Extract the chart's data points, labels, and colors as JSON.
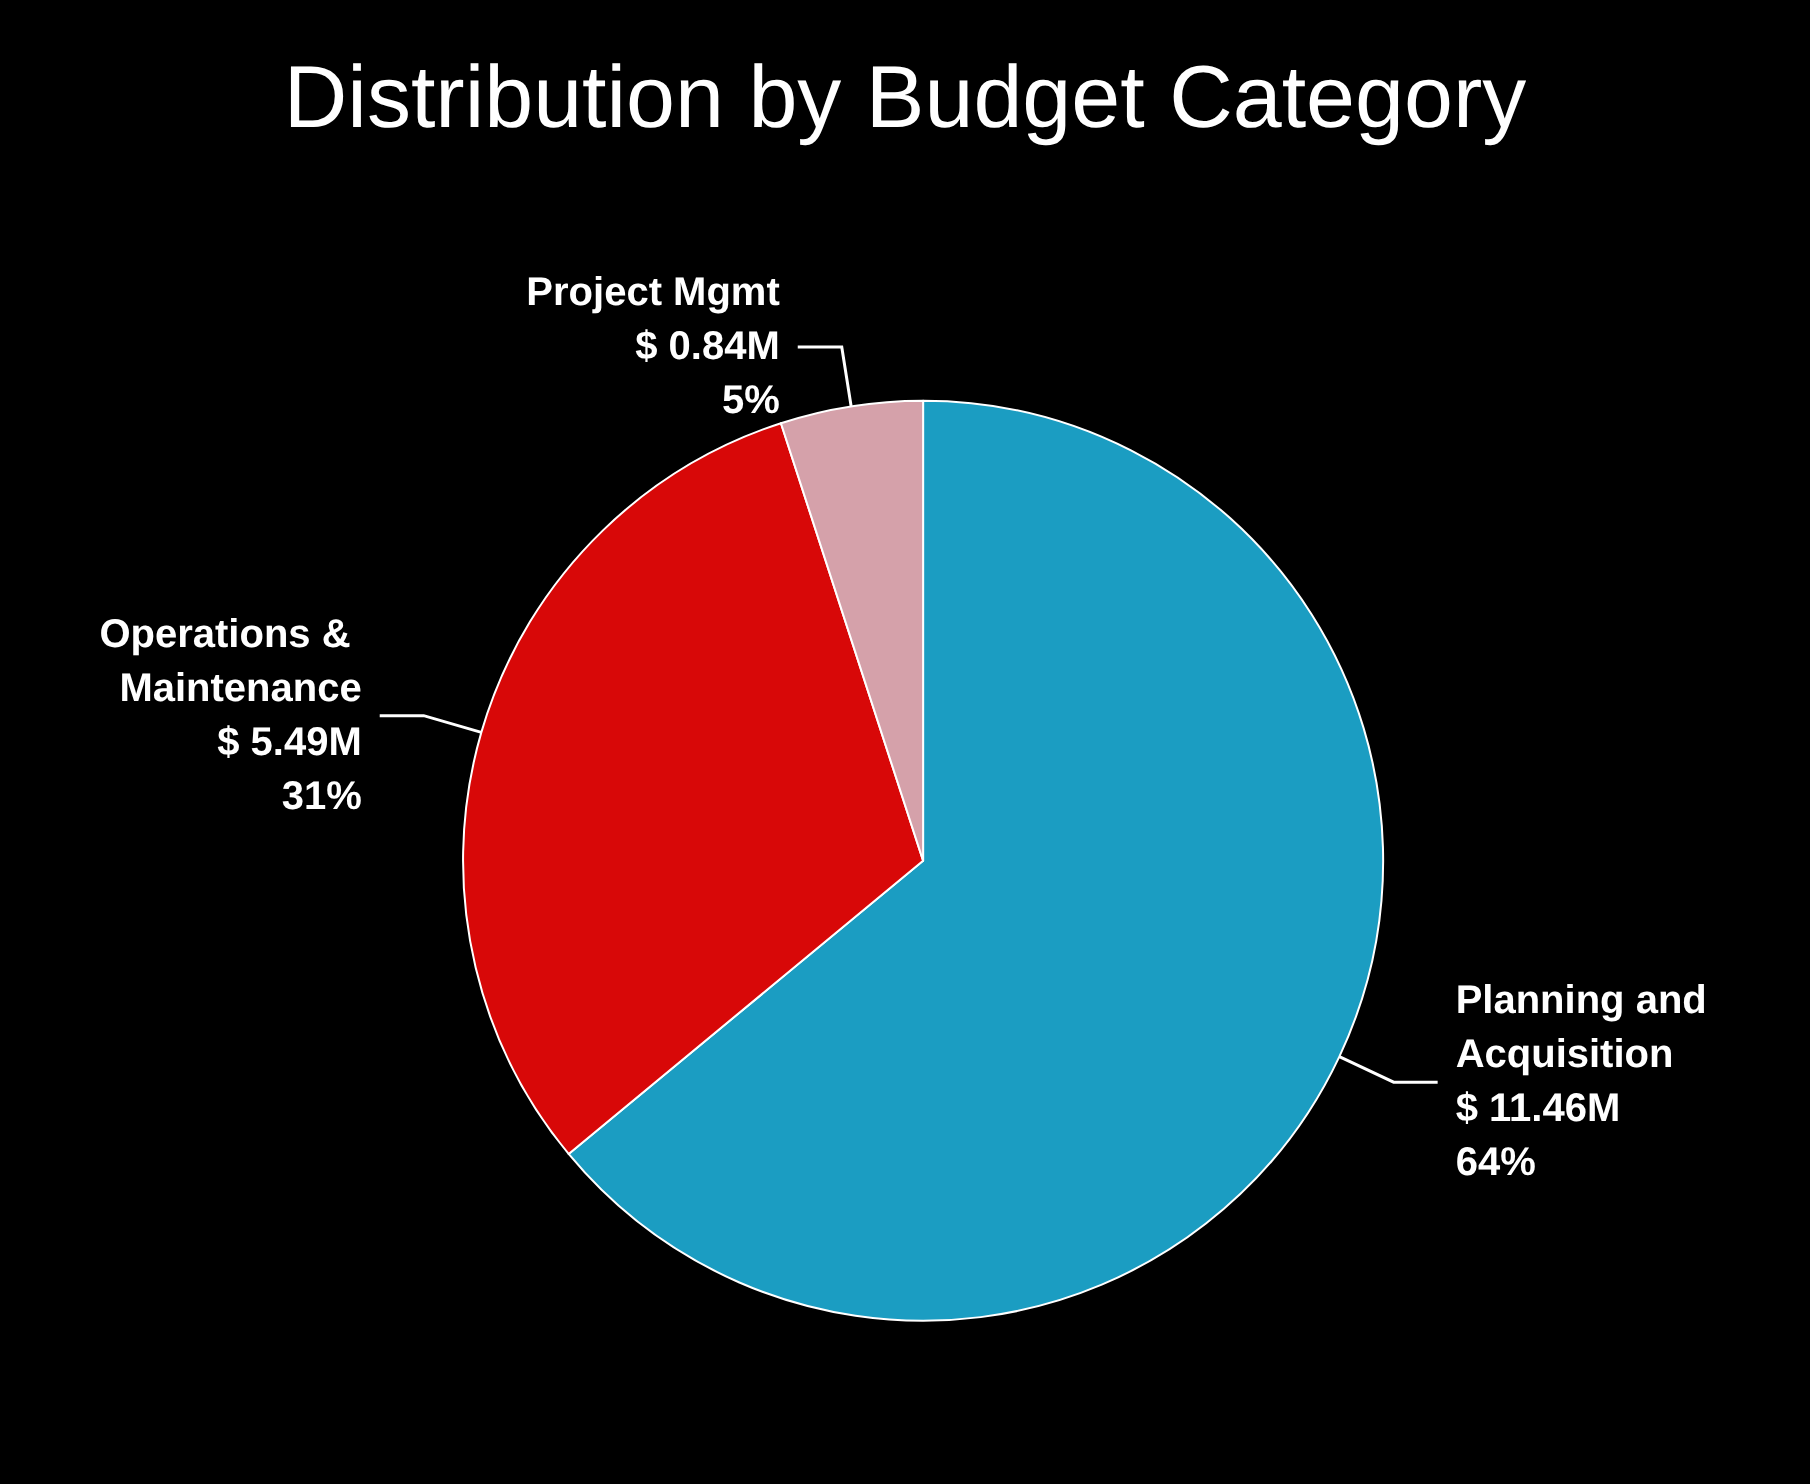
{
  "chart_data": {
    "type": "pie",
    "title": "Distribution by Budget Category",
    "categories": [
      "Planning and Acquisition",
      "Operations & Maintenance",
      "Project Mgmt"
    ],
    "values": [
      64,
      31,
      5
    ],
    "colors": [
      "#1b9dc2",
      "#d80808",
      "#d5a1aa"
    ],
    "value_labels": [
      "$ 11.46M\n64%",
      "$ 5.49M\n31%",
      "$ 0.84M\n5%"
    ],
    "legend": false
  }
}
